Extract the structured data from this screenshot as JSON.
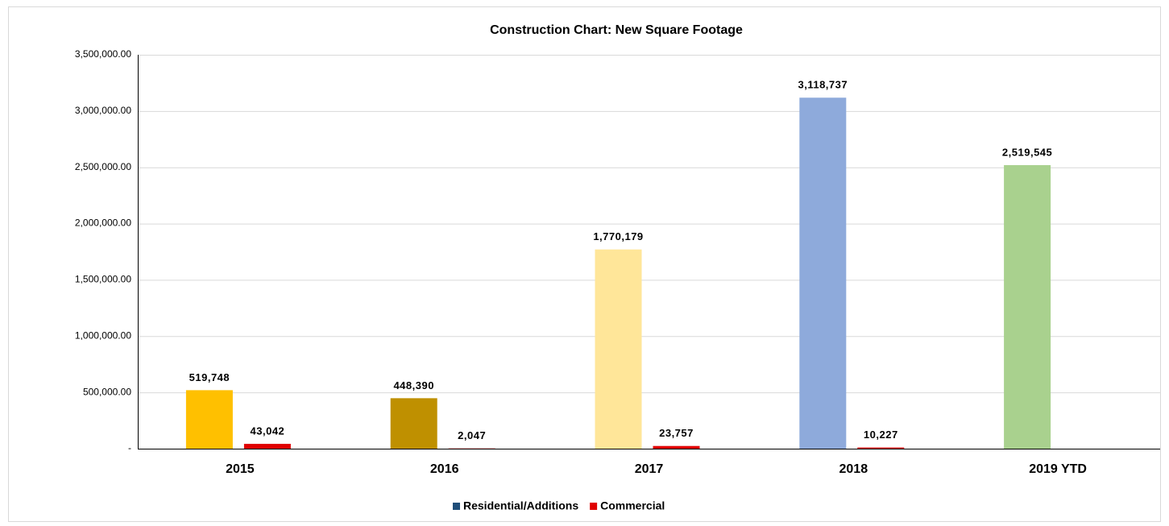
{
  "chart_data": {
    "type": "bar",
    "title": "Construction Chart: New Square Footage",
    "categories": [
      "2015",
      "2016",
      "2017",
      "2018",
      "2019 YTD"
    ],
    "series": [
      {
        "name": "Residential/Additions",
        "color": "#1f4e79",
        "colors": [
          "#ffc000",
          "#bf9000",
          "#ffe699",
          "#8eaadb",
          "#a9d18e"
        ],
        "values": [
          519748,
          448390,
          1770179,
          3118737,
          2519545
        ],
        "value_labels": [
          "519,748",
          "448,390",
          "1,770,179",
          "3,118,737",
          "2,519,545"
        ]
      },
      {
        "name": "Commercial",
        "color": "#e00000",
        "values": [
          43042,
          2047,
          23757,
          10227,
          null
        ],
        "value_labels": [
          "43,042",
          "2,047",
          "23,757",
          "10,227",
          null
        ]
      }
    ],
    "ylim": [
      0,
      3500000
    ],
    "yticks": [
      {
        "value": 0,
        "label": "-"
      },
      {
        "value": 500000,
        "label": "500,000.00"
      },
      {
        "value": 1000000,
        "label": "1,000,000.00"
      },
      {
        "value": 1500000,
        "label": "1,500,000.00"
      },
      {
        "value": 2000000,
        "label": "2,000,000.00"
      },
      {
        "value": 2500000,
        "label": "2,500,000.00"
      },
      {
        "value": 3000000,
        "label": "3,000,000.00"
      },
      {
        "value": 3500000,
        "label": "3,500,000.00"
      }
    ],
    "grid": true,
    "legend": "bottom"
  }
}
